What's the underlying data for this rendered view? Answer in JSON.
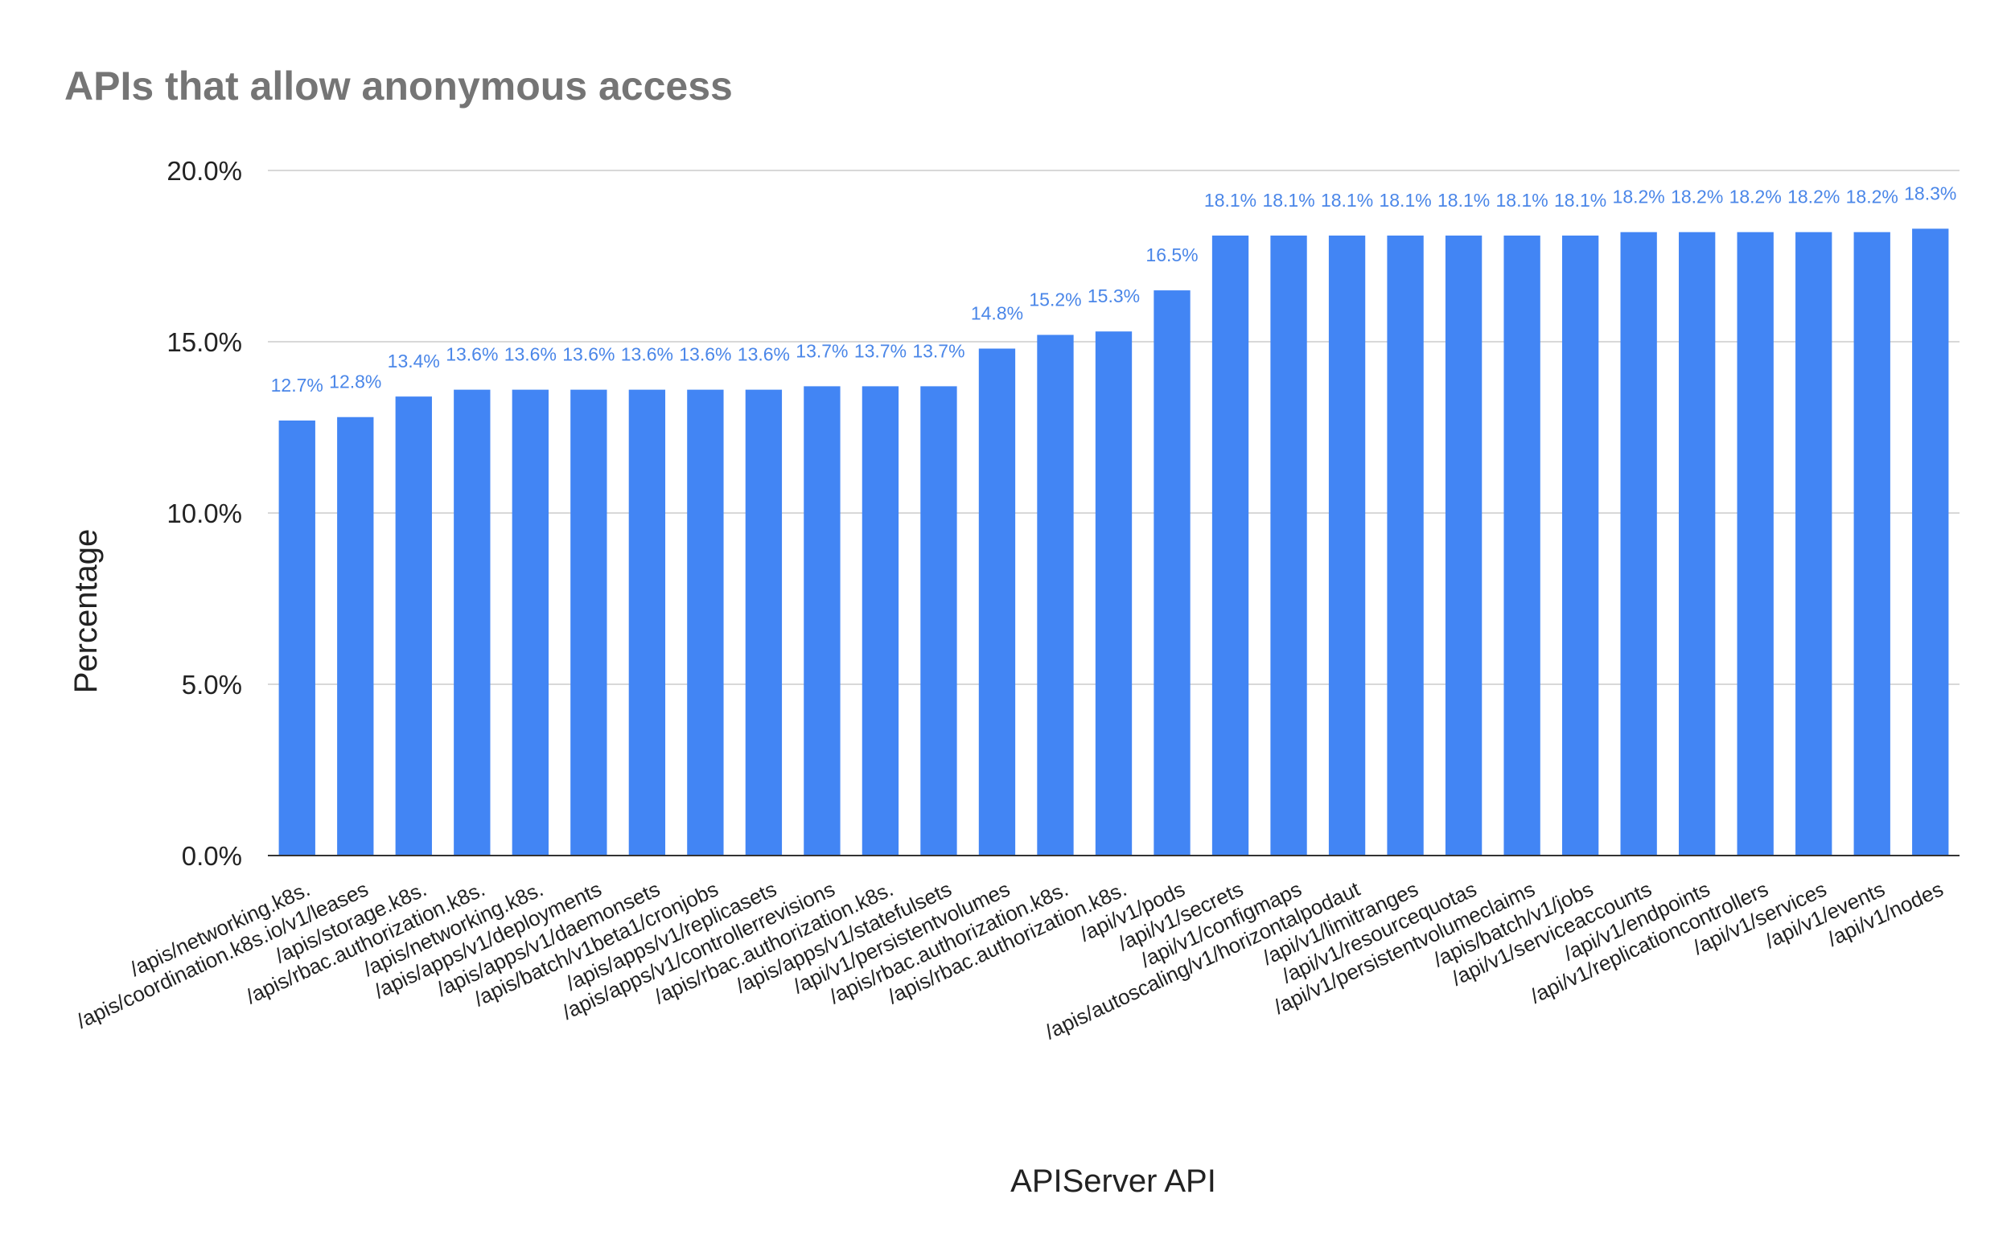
{
  "chart_data": {
    "type": "bar",
    "title": "APIs that allow anonymous access",
    "xlabel": "APIServer API",
    "ylabel": "Percentage",
    "ylim": [
      0,
      20
    ],
    "yticks": [
      "0.0%",
      "5.0%",
      "10.0%",
      "15.0%",
      "20.0%"
    ],
    "grid": true,
    "bar_color": "#4285f4",
    "label_color": "#4a86e8",
    "categories": [
      "/apis/networking.k8s.",
      "/apis/coordination.k8s.io/v1/leases",
      "/apis/storage.k8s.",
      "/apis/rbac.authorization.k8s.",
      "/apis/networking.k8s.",
      "/apis/apps/v1/deployments",
      "/apis/apps/v1/daemonsets",
      "/apis/batch/v1beta1/cronjobs",
      "/apis/apps/v1/replicasets",
      "/apis/apps/v1/controllerrevisions",
      "/apis/rbac.authorization.k8s.",
      "/apis/apps/v1/statefulsets",
      "/api/v1/persistentvolumes",
      "/apis/rbac.authorization.k8s.",
      "/apis/rbac.authorization.k8s.",
      "/api/v1/pods",
      "/api/v1/secrets",
      "/api/v1/configmaps",
      "/apis/autoscaling/v1/horizontalpodaut",
      "/api/v1/limitranges",
      "/api/v1/resourcequotas",
      "/api/v1/persistentvolumeclaims",
      "/apis/batch/v1/jobs",
      "/api/v1/serviceaccounts",
      "/api/v1/endpoints",
      "/api/v1/replicationcontrollers",
      "/api/v1/services",
      "/api/v1/events",
      "/api/v1/nodes"
    ],
    "values": [
      12.7,
      12.8,
      13.4,
      13.6,
      13.6,
      13.6,
      13.6,
      13.6,
      13.6,
      13.7,
      13.7,
      13.7,
      14.8,
      15.2,
      15.3,
      16.5,
      18.1,
      18.1,
      18.1,
      18.1,
      18.1,
      18.1,
      18.1,
      18.2,
      18.2,
      18.2,
      18.2,
      18.2,
      18.3
    ],
    "data_labels": [
      "12.7%",
      "12.8%",
      "13.4%",
      "13.6%",
      "13.6%",
      "13.6%",
      "13.6%",
      "13.6%",
      "13.6%",
      "13.7%",
      "13.7%",
      "13.7%",
      "14.8%",
      "15.2%",
      "15.3%",
      "16.5%",
      "18.1%",
      "18.1%",
      "18.1%",
      "18.1%",
      "18.1%",
      "18.1%",
      "18.1%",
      "18.2%",
      "18.2%",
      "18.2%",
      "18.2%",
      "18.2%",
      "18.3%"
    ]
  }
}
